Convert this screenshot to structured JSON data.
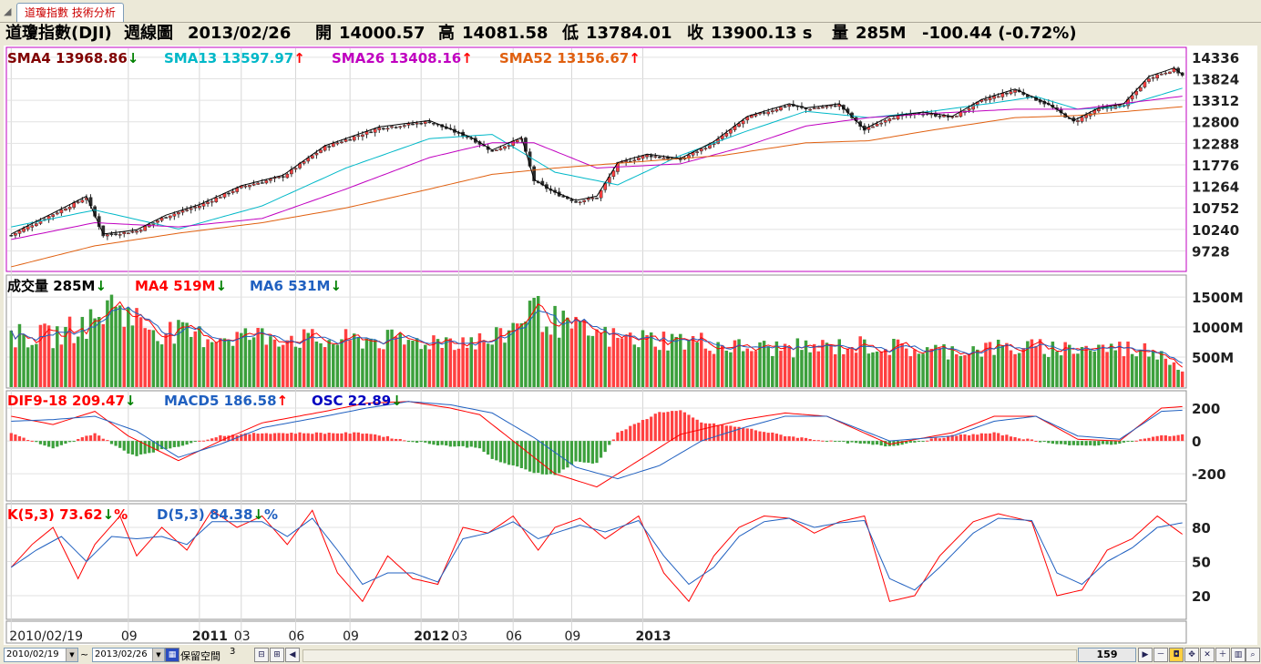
{
  "window": {
    "tab_label": "道瓊指數 技術分析"
  },
  "header": {
    "name": "道瓊指數(DJI)",
    "period": "週線圖",
    "date": "2013/02/26",
    "open_label": "開",
    "open": "14000.57",
    "high_label": "高",
    "high": "14081.58",
    "low_label": "低",
    "low": "13784.01",
    "close_label": "收",
    "close": "13900.13 s",
    "volume_label": "量",
    "volume": "285M",
    "change": "-100.44 (-0.72%)"
  },
  "colors": {
    "up": "#ff4040",
    "down": "#2a2a2a",
    "vol_up": "#ff4040",
    "vol_down": "#3ca03c",
    "sma4": "#000000",
    "sma13": "#00b8c8",
    "sma26": "#c000c0",
    "sma52": "#e06010",
    "dif": "#ff0000",
    "macd": "#2060c0",
    "k": "#ff0000",
    "d": "#2060c0"
  },
  "legends": {
    "price": [
      {
        "text": "SMA4 13968.86",
        "arrow": "↓",
        "color": "#800000",
        "arrow_color": "#008000"
      },
      {
        "text": "SMA13 13597.97",
        "arrow": "↑",
        "color": "#00b8c8",
        "arrow_color": "#ff0000"
      },
      {
        "text": "SMA26 13408.16",
        "arrow": "↑",
        "color": "#c000c0",
        "arrow_color": "#ff0000"
      },
      {
        "text": "SMA52 13156.67",
        "arrow": "↑",
        "color": "#e06010",
        "arrow_color": "#ff0000"
      }
    ],
    "volume": [
      {
        "text": "成交量 285M",
        "arrow": "↓",
        "color": "#000000",
        "arrow_color": "#008000"
      },
      {
        "text": "MA4 519M",
        "arrow": "↓",
        "color": "#ff0000",
        "arrow_color": "#008000"
      },
      {
        "text": "MA6 531M",
        "arrow": "↓",
        "color": "#2060c0",
        "arrow_color": "#008000"
      }
    ],
    "macd": [
      {
        "text": "DIF9-18 209.47",
        "arrow": "↓",
        "color": "#ff0000",
        "arrow_color": "#008000"
      },
      {
        "text": "MACD5 186.58",
        "arrow": "↑",
        "color": "#2060c0",
        "arrow_color": "#ff0000"
      },
      {
        "text": "OSC 22.89",
        "arrow": "↓",
        "color": "#0000c0",
        "arrow_color": "#008000"
      }
    ],
    "kd": [
      {
        "text": "K(5,3) 73.62",
        "arrow": "↓",
        "suffix": "%",
        "color": "#ff0000",
        "arrow_color": "#008000"
      },
      {
        "text": "D(5,3) 84.38",
        "arrow": "↓",
        "suffix": "%",
        "color": "#2060c0",
        "arrow_color": "#008000"
      }
    ]
  },
  "chart_data": {
    "type": "candlestick",
    "bars": 159,
    "price_ticks": [
      "14336",
      "13824",
      "13312",
      "12800",
      "12288",
      "11776",
      "11264",
      "10752",
      "10240",
      "9728"
    ],
    "price_range": [
      9240,
      14550
    ],
    "price_anchors": [
      [
        0,
        10100
      ],
      [
        10,
        10600
      ],
      [
        18,
        11000
      ],
      [
        22,
        10100
      ],
      [
        30,
        10200
      ],
      [
        37,
        10550
      ],
      [
        45,
        10800
      ],
      [
        55,
        11250
      ],
      [
        65,
        11500
      ],
      [
        75,
        12200
      ],
      [
        88,
        12650
      ],
      [
        100,
        12800
      ],
      [
        110,
        12400
      ],
      [
        115,
        12100
      ],
      [
        122,
        12400
      ],
      [
        125,
        11400
      ],
      [
        130,
        11100
      ],
      [
        135,
        10900
      ],
      [
        140,
        11000
      ],
      [
        145,
        11800
      ],
      [
        152,
        12000
      ],
      [
        160,
        11900
      ],
      [
        168,
        12300
      ],
      [
        176,
        12900
      ],
      [
        186,
        13200
      ],
      [
        190,
        13100
      ],
      [
        198,
        13200
      ],
      [
        204,
        12600
      ],
      [
        210,
        12900
      ],
      [
        218,
        13000
      ],
      [
        225,
        12900
      ],
      [
        232,
        13300
      ],
      [
        240,
        13550
      ],
      [
        248,
        13200
      ],
      [
        254,
        12800
      ],
      [
        260,
        13100
      ],
      [
        266,
        13200
      ],
      [
        272,
        13850
      ],
      [
        278,
        14050
      ],
      [
        280,
        13900
      ]
    ],
    "sma_lines": [
      {
        "name": "SMA13",
        "anchors": [
          [
            0,
            10300
          ],
          [
            20,
            10700
          ],
          [
            40,
            10250
          ],
          [
            60,
            10800
          ],
          [
            80,
            11700
          ],
          [
            100,
            12400
          ],
          [
            115,
            12500
          ],
          [
            130,
            11600
          ],
          [
            145,
            11300
          ],
          [
            160,
            12000
          ],
          [
            175,
            12550
          ],
          [
            190,
            13050
          ],
          [
            205,
            12900
          ],
          [
            220,
            13050
          ],
          [
            235,
            13250
          ],
          [
            245,
            13400
          ],
          [
            255,
            13100
          ],
          [
            265,
            13150
          ],
          [
            280,
            13600
          ]
        ]
      },
      {
        "name": "SMA26",
        "anchors": [
          [
            0,
            10000
          ],
          [
            20,
            10400
          ],
          [
            40,
            10300
          ],
          [
            60,
            10500
          ],
          [
            80,
            11200
          ],
          [
            100,
            11950
          ],
          [
            115,
            12300
          ],
          [
            125,
            12300
          ],
          [
            140,
            11700
          ],
          [
            160,
            11800
          ],
          [
            175,
            12200
          ],
          [
            190,
            12700
          ],
          [
            205,
            12900
          ],
          [
            220,
            13000
          ],
          [
            240,
            13100
          ],
          [
            255,
            13100
          ],
          [
            280,
            13410
          ]
        ]
      },
      {
        "name": "SMA52",
        "anchors": [
          [
            0,
            9350
          ],
          [
            20,
            9850
          ],
          [
            40,
            10150
          ],
          [
            60,
            10400
          ],
          [
            80,
            10750
          ],
          [
            100,
            11200
          ],
          [
            115,
            11550
          ],
          [
            130,
            11700
          ],
          [
            150,
            11850
          ],
          [
            170,
            12000
          ],
          [
            190,
            12300
          ],
          [
            205,
            12350
          ],
          [
            220,
            12600
          ],
          [
            240,
            12900
          ],
          [
            255,
            12950
          ],
          [
            280,
            13160
          ]
        ]
      }
    ],
    "volume_ticks": [
      "1500M",
      "1000M",
      "500M"
    ],
    "volume_range": [
      0,
      1850
    ],
    "volume_anchors": [
      [
        0,
        850
      ],
      [
        10,
        850
      ],
      [
        20,
        1100
      ],
      [
        25,
        1450
      ],
      [
        28,
        1200
      ],
      [
        35,
        950
      ],
      [
        45,
        850
      ],
      [
        55,
        850
      ],
      [
        65,
        850
      ],
      [
        75,
        750
      ],
      [
        85,
        800
      ],
      [
        95,
        750
      ],
      [
        105,
        800
      ],
      [
        115,
        750
      ],
      [
        120,
        1000
      ],
      [
        124,
        1350
      ],
      [
        128,
        1150
      ],
      [
        135,
        950
      ],
      [
        145,
        800
      ],
      [
        155,
        800
      ],
      [
        165,
        750
      ],
      [
        175,
        650
      ],
      [
        190,
        650
      ],
      [
        205,
        700
      ],
      [
        220,
        600
      ],
      [
        235,
        650
      ],
      [
        250,
        650
      ],
      [
        265,
        650
      ],
      [
        275,
        600
      ],
      [
        280,
        285
      ]
    ],
    "macd_ticks": [
      "200",
      "0",
      "-200"
    ],
    "macd_range": [
      -360,
      300
    ],
    "dif_anchors": [
      [
        0,
        150
      ],
      [
        10,
        100
      ],
      [
        20,
        180
      ],
      [
        28,
        30
      ],
      [
        40,
        -120
      ],
      [
        50,
        0
      ],
      [
        60,
        110
      ],
      [
        75,
        180
      ],
      [
        85,
        230
      ],
      [
        95,
        240
      ],
      [
        105,
        200
      ],
      [
        112,
        160
      ],
      [
        120,
        0
      ],
      [
        130,
        -200
      ],
      [
        140,
        -280
      ],
      [
        150,
        -120
      ],
      [
        160,
        40
      ],
      [
        175,
        130
      ],
      [
        185,
        170
      ],
      [
        195,
        150
      ],
      [
        210,
        -20
      ],
      [
        225,
        50
      ],
      [
        235,
        150
      ],
      [
        245,
        150
      ],
      [
        255,
        10
      ],
      [
        265,
        0
      ],
      [
        275,
        200
      ],
      [
        280,
        209
      ]
    ],
    "macd_anchors": [
      [
        0,
        120
      ],
      [
        10,
        130
      ],
      [
        20,
        150
      ],
      [
        30,
        60
      ],
      [
        40,
        -100
      ],
      [
        50,
        -20
      ],
      [
        60,
        80
      ],
      [
        75,
        150
      ],
      [
        85,
        200
      ],
      [
        95,
        240
      ],
      [
        105,
        220
      ],
      [
        115,
        170
      ],
      [
        125,
        20
      ],
      [
        135,
        -160
      ],
      [
        145,
        -230
      ],
      [
        155,
        -150
      ],
      [
        165,
        0
      ],
      [
        175,
        80
      ],
      [
        185,
        150
      ],
      [
        195,
        150
      ],
      [
        210,
        0
      ],
      [
        225,
        30
      ],
      [
        235,
        120
      ],
      [
        245,
        150
      ],
      [
        255,
        30
      ],
      [
        265,
        10
      ],
      [
        275,
        180
      ],
      [
        280,
        187
      ]
    ],
    "kd_ticks": [
      "80",
      "50",
      "20"
    ],
    "kd_range": [
      0,
      100
    ],
    "k_anchors": [
      [
        0,
        45
      ],
      [
        5,
        65
      ],
      [
        10,
        80
      ],
      [
        16,
        35
      ],
      [
        20,
        65
      ],
      [
        26,
        90
      ],
      [
        30,
        55
      ],
      [
        36,
        80
      ],
      [
        42,
        60
      ],
      [
        48,
        95
      ],
      [
        54,
        80
      ],
      [
        60,
        90
      ],
      [
        66,
        65
      ],
      [
        72,
        95
      ],
      [
        78,
        40
      ],
      [
        84,
        15
      ],
      [
        90,
        55
      ],
      [
        96,
        35
      ],
      [
        102,
        30
      ],
      [
        108,
        80
      ],
      [
        114,
        75
      ],
      [
        120,
        90
      ],
      [
        126,
        60
      ],
      [
        130,
        80
      ],
      [
        136,
        88
      ],
      [
        142,
        70
      ],
      [
        150,
        90
      ],
      [
        156,
        40
      ],
      [
        162,
        15
      ],
      [
        168,
        55
      ],
      [
        174,
        80
      ],
      [
        180,
        90
      ],
      [
        186,
        88
      ],
      [
        192,
        75
      ],
      [
        198,
        85
      ],
      [
        204,
        90
      ],
      [
        210,
        15
      ],
      [
        216,
        20
      ],
      [
        222,
        55
      ],
      [
        230,
        85
      ],
      [
        236,
        92
      ],
      [
        244,
        85
      ],
      [
        250,
        20
      ],
      [
        256,
        25
      ],
      [
        262,
        60
      ],
      [
        268,
        70
      ],
      [
        274,
        90
      ],
      [
        280,
        74
      ]
    ],
    "d_anchors": [
      [
        0,
        45
      ],
      [
        6,
        60
      ],
      [
        12,
        72
      ],
      [
        18,
        50
      ],
      [
        24,
        72
      ],
      [
        30,
        70
      ],
      [
        36,
        72
      ],
      [
        42,
        65
      ],
      [
        48,
        85
      ],
      [
        54,
        85
      ],
      [
        60,
        85
      ],
      [
        66,
        72
      ],
      [
        72,
        88
      ],
      [
        78,
        60
      ],
      [
        84,
        30
      ],
      [
        90,
        40
      ],
      [
        96,
        40
      ],
      [
        102,
        32
      ],
      [
        108,
        70
      ],
      [
        114,
        75
      ],
      [
        120,
        85
      ],
      [
        126,
        70
      ],
      [
        130,
        75
      ],
      [
        136,
        82
      ],
      [
        142,
        76
      ],
      [
        150,
        86
      ],
      [
        156,
        55
      ],
      [
        162,
        30
      ],
      [
        168,
        45
      ],
      [
        174,
        72
      ],
      [
        180,
        85
      ],
      [
        186,
        88
      ],
      [
        192,
        80
      ],
      [
        198,
        84
      ],
      [
        204,
        86
      ],
      [
        210,
        35
      ],
      [
        216,
        25
      ],
      [
        222,
        45
      ],
      [
        230,
        75
      ],
      [
        236,
        88
      ],
      [
        244,
        86
      ],
      [
        250,
        40
      ],
      [
        256,
        30
      ],
      [
        262,
        50
      ],
      [
        268,
        62
      ],
      [
        274,
        80
      ],
      [
        280,
        84
      ]
    ],
    "x_labels": [
      {
        "bar": 0,
        "text": "2010/02/19",
        "bold": false
      },
      {
        "bar": 28,
        "text": "09",
        "bold": false
      },
      {
        "bar": 45,
        "text": "2011",
        "bold": true
      },
      {
        "bar": 55,
        "text": "03",
        "bold": false
      },
      {
        "bar": 68,
        "text": "06",
        "bold": false
      },
      {
        "bar": 81,
        "text": "09",
        "bold": false
      },
      {
        "bar": 98,
        "text": "2012",
        "bold": true
      },
      {
        "bar": 107,
        "text": "03",
        "bold": false
      },
      {
        "bar": 120,
        "text": "06",
        "bold": false
      },
      {
        "bar": 134,
        "text": "09",
        "bold": false
      },
      {
        "bar": 151,
        "text": "2013",
        "bold": true
      }
    ]
  },
  "bottom": {
    "start_date": "2010/02/19",
    "tilde": "~",
    "end_date": "2013/02/26",
    "reserve_label": "保留空間",
    "reserve_value": "3",
    "bars_count": "159"
  }
}
